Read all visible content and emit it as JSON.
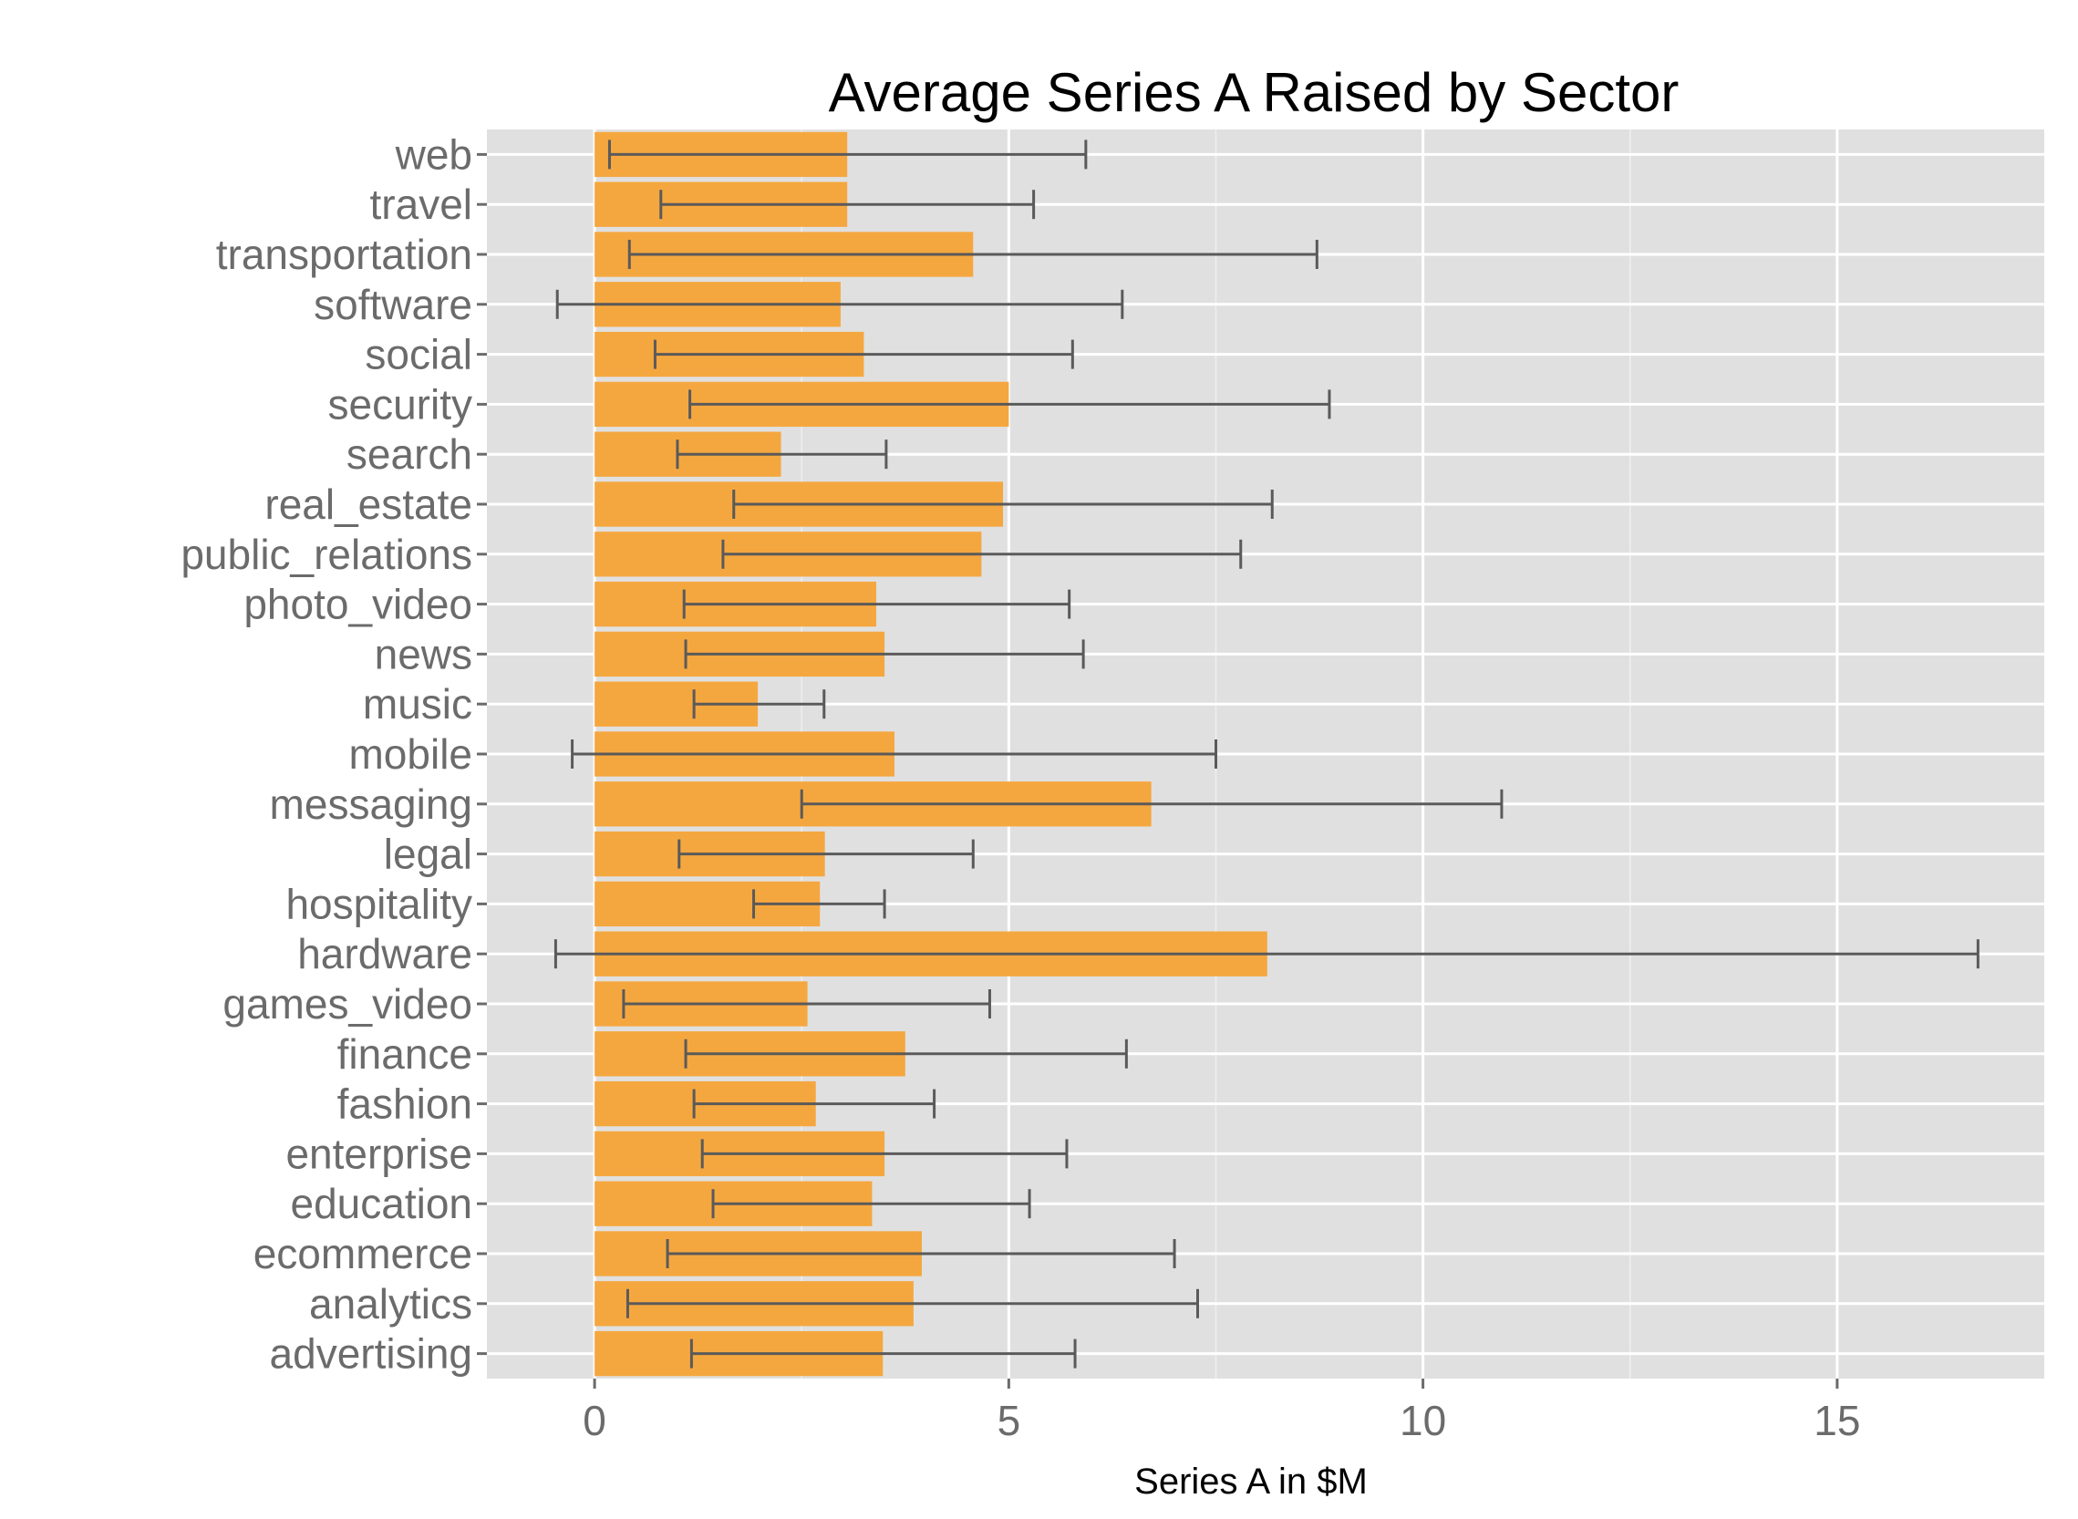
{
  "chart_data": {
    "type": "bar",
    "orientation": "horizontal",
    "title": "Average Series A Raised by Sector",
    "xlabel": "Series A in $M",
    "ylabel": "",
    "xlim": [
      -1.3,
      17.5
    ],
    "xticks": [
      0,
      5,
      10,
      15
    ],
    "xtick_labels": [
      "0",
      "5",
      "10",
      "15"
    ],
    "grid": true,
    "colors": {
      "bar": "#f5a73f",
      "panel": "#e0e0e0",
      "grid": "#ffffff",
      "errorbar": "#5a5a5a",
      "tick_text": "#6b6b6b"
    },
    "categories": [
      "web",
      "travel",
      "transportation",
      "software",
      "social",
      "security",
      "search",
      "real_estate",
      "public_relations",
      "photo_video",
      "news",
      "music",
      "mobile",
      "messaging",
      "legal",
      "hospitality",
      "hardware",
      "games_video",
      "finance",
      "fashion",
      "enterprise",
      "education",
      "ecommerce",
      "analytics",
      "advertising"
    ],
    "series": [
      {
        "values": [
          3.05,
          3.05,
          4.57,
          2.97,
          3.25,
          5.0,
          2.25,
          4.93,
          4.67,
          3.4,
          3.5,
          1.97,
          3.62,
          6.72,
          2.78,
          2.72,
          8.12,
          2.57,
          3.75,
          2.67,
          3.5,
          3.35,
          3.95,
          3.85,
          3.48
        ],
        "error_low": [
          0.18,
          0.8,
          0.42,
          -0.45,
          0.73,
          1.15,
          1.0,
          1.68,
          1.55,
          1.08,
          1.1,
          1.2,
          -0.27,
          2.5,
          1.02,
          1.92,
          -0.47,
          0.35,
          1.1,
          1.2,
          1.3,
          1.43,
          0.88,
          0.4,
          1.17
        ],
        "error_high": [
          5.93,
          5.3,
          8.72,
          6.37,
          5.77,
          8.87,
          3.52,
          8.18,
          7.8,
          5.73,
          5.9,
          2.77,
          7.5,
          10.95,
          4.57,
          3.5,
          16.7,
          4.77,
          6.42,
          4.1,
          5.7,
          5.25,
          7.0,
          7.28,
          5.8
        ]
      }
    ]
  }
}
